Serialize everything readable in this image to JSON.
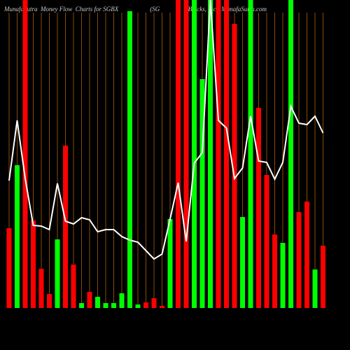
{
  "chart_data": {
    "type": "bar",
    "title": "MunafaSutra  Money Flow  Charts for SGBX                    (SG                  Blocks, Inc.) MunafaSutra.com",
    "categories": [
      null,
      null,
      null,
      null,
      null,
      null,
      null,
      null,
      null,
      null,
      null,
      null,
      null,
      null,
      null,
      null,
      null,
      null,
      null,
      null,
      null,
      null,
      null,
      null,
      null,
      null,
      null,
      null,
      null,
      null,
      null,
      null,
      null,
      null,
      null,
      null,
      null,
      null,
      null,
      null
    ],
    "values": [
      114,
      204,
      440,
      125,
      56,
      20,
      98,
      232,
      62,
      7,
      23,
      16,
      7,
      7,
      21,
      424,
      5,
      8,
      14,
      3,
      127,
      440,
      440,
      440,
      327,
      440,
      440,
      440,
      406,
      130,
      440,
      286,
      190,
      105,
      93,
      440,
      137,
      152,
      55,
      89
    ],
    "colors": [
      "#ff0000",
      "#00ff00",
      "#ff0000",
      "#ff0000",
      "#ff0000",
      "#ff0000",
      "#00ff00",
      "#ff0000",
      "#ff0000",
      "#00ff00",
      "#ff0000",
      "#00ff00",
      "#00ff00",
      "#00ff00",
      "#00ff00",
      "#00ff00",
      "#00ff00",
      "#ff0000",
      "#ff0000",
      "#ff0000",
      "#00ff00",
      "#ff0000",
      "#ff0000",
      "#00ff00",
      "#00ff00",
      "#00ff00",
      "#ff0000",
      "#ff0000",
      "#ff0000",
      "#00ff00",
      "#00ff00",
      "#ff0000",
      "#ff0000",
      "#ff0000",
      "#00ff00",
      "#00ff00",
      "#ff0000",
      "#ff0000",
      "#00ff00",
      "#ff0000"
    ],
    "line": {
      "color": "#ffffff",
      "values": [
        182,
        268,
        185,
        118,
        117,
        112,
        178,
        124,
        120,
        129,
        126,
        109,
        112,
        112,
        102,
        97,
        94,
        82,
        70,
        77,
        127,
        179,
        95,
        207,
        222,
        440,
        268,
        257,
        185,
        200,
        274,
        210,
        208,
        184,
        208,
        288,
        264,
        262,
        274,
        250
      ]
    },
    "ylim": [
      0,
      440
    ],
    "grid_color": "#8b4a0a"
  }
}
